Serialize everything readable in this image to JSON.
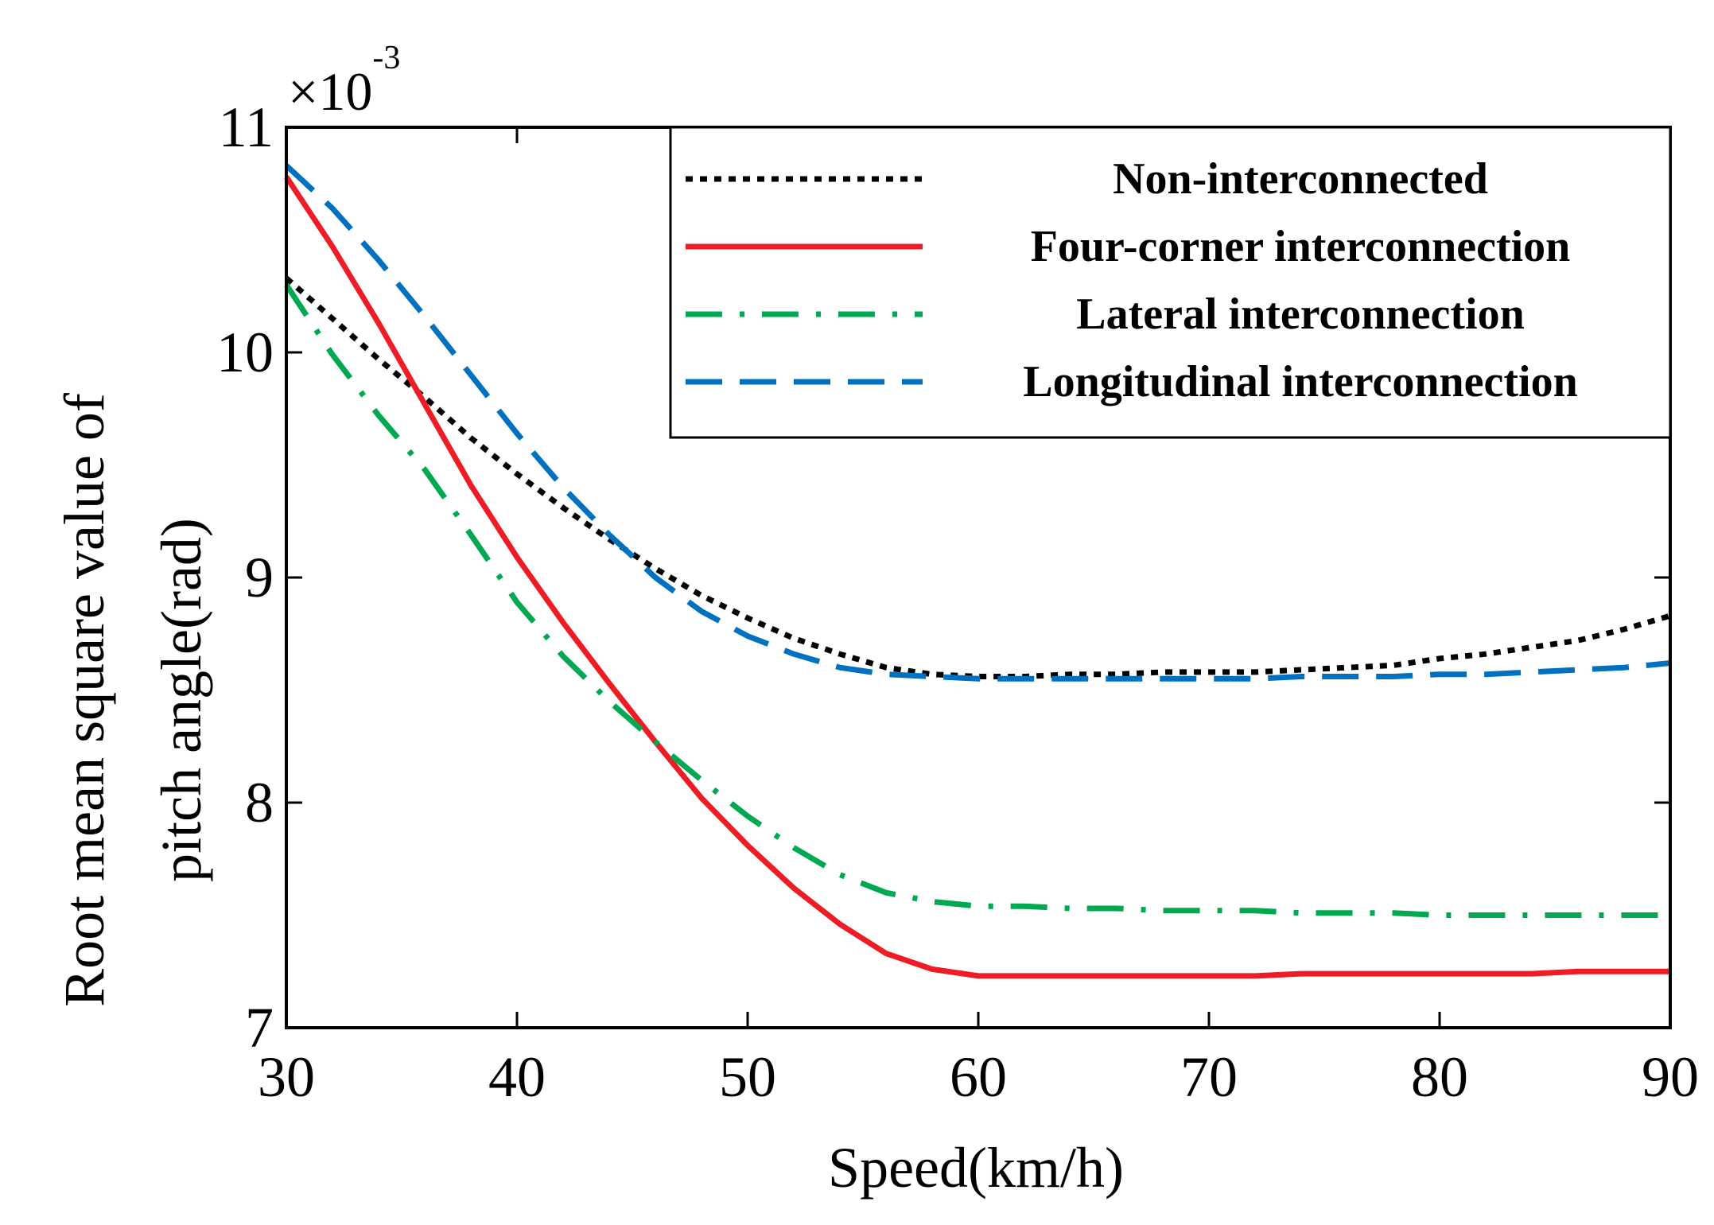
{
  "chart_data": {
    "type": "line",
    "title": "",
    "xlabel": "Speed(km/h)",
    "ylabel_lines": [
      "Root mean square value of",
      "pitch angle(rad)"
    ],
    "y_multiplier": {
      "base": "×10",
      "exponent": "-3"
    },
    "xlim": [
      30,
      90
    ],
    "ylim": [
      7,
      11
    ],
    "x_ticks": [
      30,
      40,
      50,
      60,
      70,
      80,
      90
    ],
    "x_tick_labels": [
      "30",
      "40",
      "50",
      "60",
      "70",
      "80",
      "90"
    ],
    "y_ticks": [
      7,
      8,
      9,
      10,
      11
    ],
    "y_tick_labels": [
      "7",
      "8",
      "9",
      "10",
      "11"
    ],
    "grid": false,
    "legend_position": "top-right",
    "series": [
      {
        "name": "Non-interconnected",
        "color": "#000000",
        "style": "dotted",
        "x": [
          30,
          32,
          34,
          36,
          38,
          40,
          42,
          44,
          46,
          48,
          50,
          52,
          54,
          56,
          58,
          60,
          62,
          64,
          66,
          68,
          70,
          72,
          74,
          76,
          78,
          80,
          82,
          84,
          86,
          88,
          90
        ],
        "y": [
          10.33,
          10.15,
          9.97,
          9.8,
          9.62,
          9.46,
          9.31,
          9.17,
          9.04,
          8.92,
          8.82,
          8.73,
          8.66,
          8.6,
          8.57,
          8.56,
          8.56,
          8.57,
          8.57,
          8.58,
          8.58,
          8.58,
          8.59,
          8.6,
          8.61,
          8.64,
          8.66,
          8.69,
          8.72,
          8.77,
          8.83
        ]
      },
      {
        "name": "Four-corner interconnection",
        "color": "#ee1c25",
        "style": "solid",
        "x": [
          30,
          32,
          34,
          36,
          38,
          40,
          42,
          44,
          46,
          48,
          50,
          52,
          54,
          56,
          58,
          60,
          62,
          64,
          66,
          68,
          70,
          72,
          74,
          76,
          78,
          80,
          82,
          84,
          86,
          88,
          90
        ],
        "y": [
          10.78,
          10.47,
          10.13,
          9.77,
          9.41,
          9.09,
          8.8,
          8.53,
          8.27,
          8.02,
          7.81,
          7.62,
          7.46,
          7.33,
          7.26,
          7.23,
          7.23,
          7.23,
          7.23,
          7.23,
          7.23,
          7.23,
          7.24,
          7.24,
          7.24,
          7.24,
          7.24,
          7.24,
          7.25,
          7.25,
          7.25
        ]
      },
      {
        "name": "Lateral interconnection",
        "color": "#00a850",
        "style": "dashdot",
        "x": [
          30,
          32,
          34,
          36,
          38,
          40,
          42,
          44,
          46,
          48,
          50,
          52,
          54,
          56,
          58,
          60,
          62,
          64,
          66,
          68,
          70,
          72,
          74,
          76,
          78,
          80,
          82,
          84,
          86,
          88,
          90
        ],
        "y": [
          10.3,
          9.99,
          9.72,
          9.48,
          9.19,
          8.89,
          8.65,
          8.45,
          8.27,
          8.1,
          7.94,
          7.8,
          7.68,
          7.6,
          7.56,
          7.54,
          7.54,
          7.53,
          7.53,
          7.52,
          7.52,
          7.52,
          7.51,
          7.51,
          7.51,
          7.5,
          7.5,
          7.5,
          7.5,
          7.5,
          7.5
        ]
      },
      {
        "name": "Longitudinal interconnection",
        "color": "#0071c1",
        "style": "dashed",
        "x": [
          30,
          32,
          34,
          36,
          38,
          40,
          42,
          44,
          46,
          48,
          50,
          52,
          54,
          56,
          58,
          60,
          62,
          64,
          66,
          68,
          70,
          72,
          74,
          76,
          78,
          80,
          82,
          84,
          86,
          88,
          90
        ],
        "y": [
          10.83,
          10.64,
          10.41,
          10.16,
          9.9,
          9.64,
          9.4,
          9.19,
          9.0,
          8.85,
          8.74,
          8.66,
          8.6,
          8.57,
          8.56,
          8.55,
          8.55,
          8.55,
          8.55,
          8.55,
          8.55,
          8.55,
          8.56,
          8.56,
          8.56,
          8.57,
          8.57,
          8.58,
          8.59,
          8.6,
          8.62
        ]
      }
    ]
  }
}
